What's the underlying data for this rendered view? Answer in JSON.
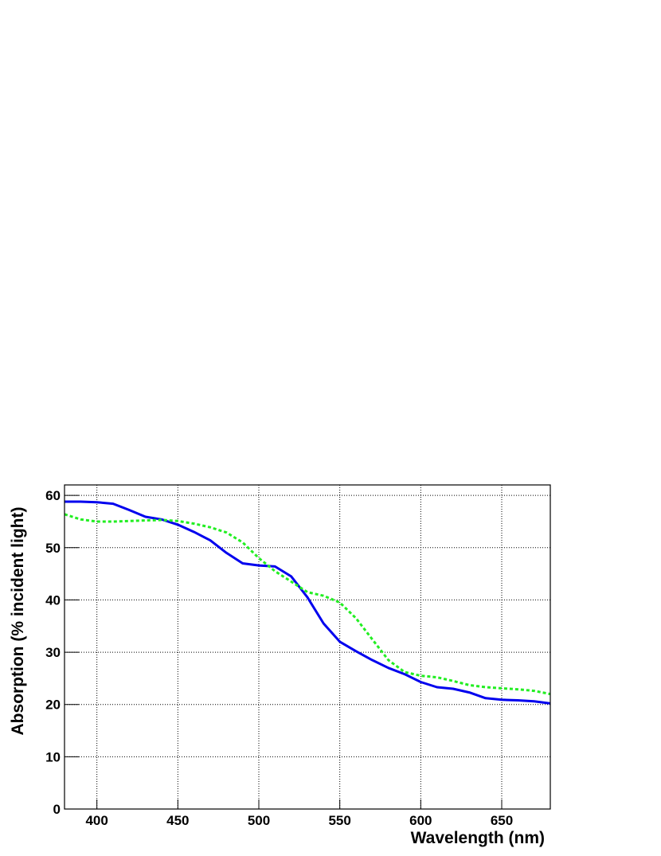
{
  "chart_data": {
    "type": "line",
    "x_label": "Wavelength (nm)",
    "y_label": "Absorption (% incident light)",
    "x": [
      380,
      390,
      400,
      410,
      420,
      430,
      440,
      450,
      460,
      470,
      480,
      490,
      500,
      510,
      520,
      530,
      540,
      550,
      560,
      570,
      580,
      590,
      600,
      610,
      620,
      630,
      640,
      650,
      660,
      670,
      680
    ],
    "series": [
      {
        "color": "#0000ee",
        "dash": "solid",
        "values": [
          58.8,
          58.8,
          58.7,
          58.4,
          57.2,
          55.9,
          55.4,
          54.4,
          53.0,
          51.4,
          49.0,
          47.0,
          46.6,
          46.4,
          44.5,
          40.5,
          35.5,
          32.0,
          30.2,
          28.5,
          27.0,
          25.8,
          24.3,
          23.3,
          23.0,
          22.3,
          21.2,
          20.9,
          20.8,
          20.6,
          20.2
        ]
      },
      {
        "color": "#22ee22",
        "dash": "dashed",
        "values": [
          56.4,
          55.4,
          55.0,
          55.0,
          55.1,
          55.2,
          55.3,
          55.1,
          54.6,
          53.9,
          52.9,
          51.0,
          48.0,
          45.5,
          43.5,
          41.5,
          40.8,
          39.5,
          36.5,
          32.5,
          28.5,
          26.2,
          25.5,
          25.2,
          24.5,
          23.7,
          23.3,
          23.1,
          22.9,
          22.6,
          22.0
        ]
      }
    ],
    "xlim": [
      380,
      680
    ],
    "xticks": [
      400,
      450,
      500,
      550,
      600,
      650
    ],
    "ylim": [
      0,
      62
    ],
    "yticks": [
      0,
      10,
      20,
      30,
      40,
      50,
      60
    ],
    "grid": true
  }
}
